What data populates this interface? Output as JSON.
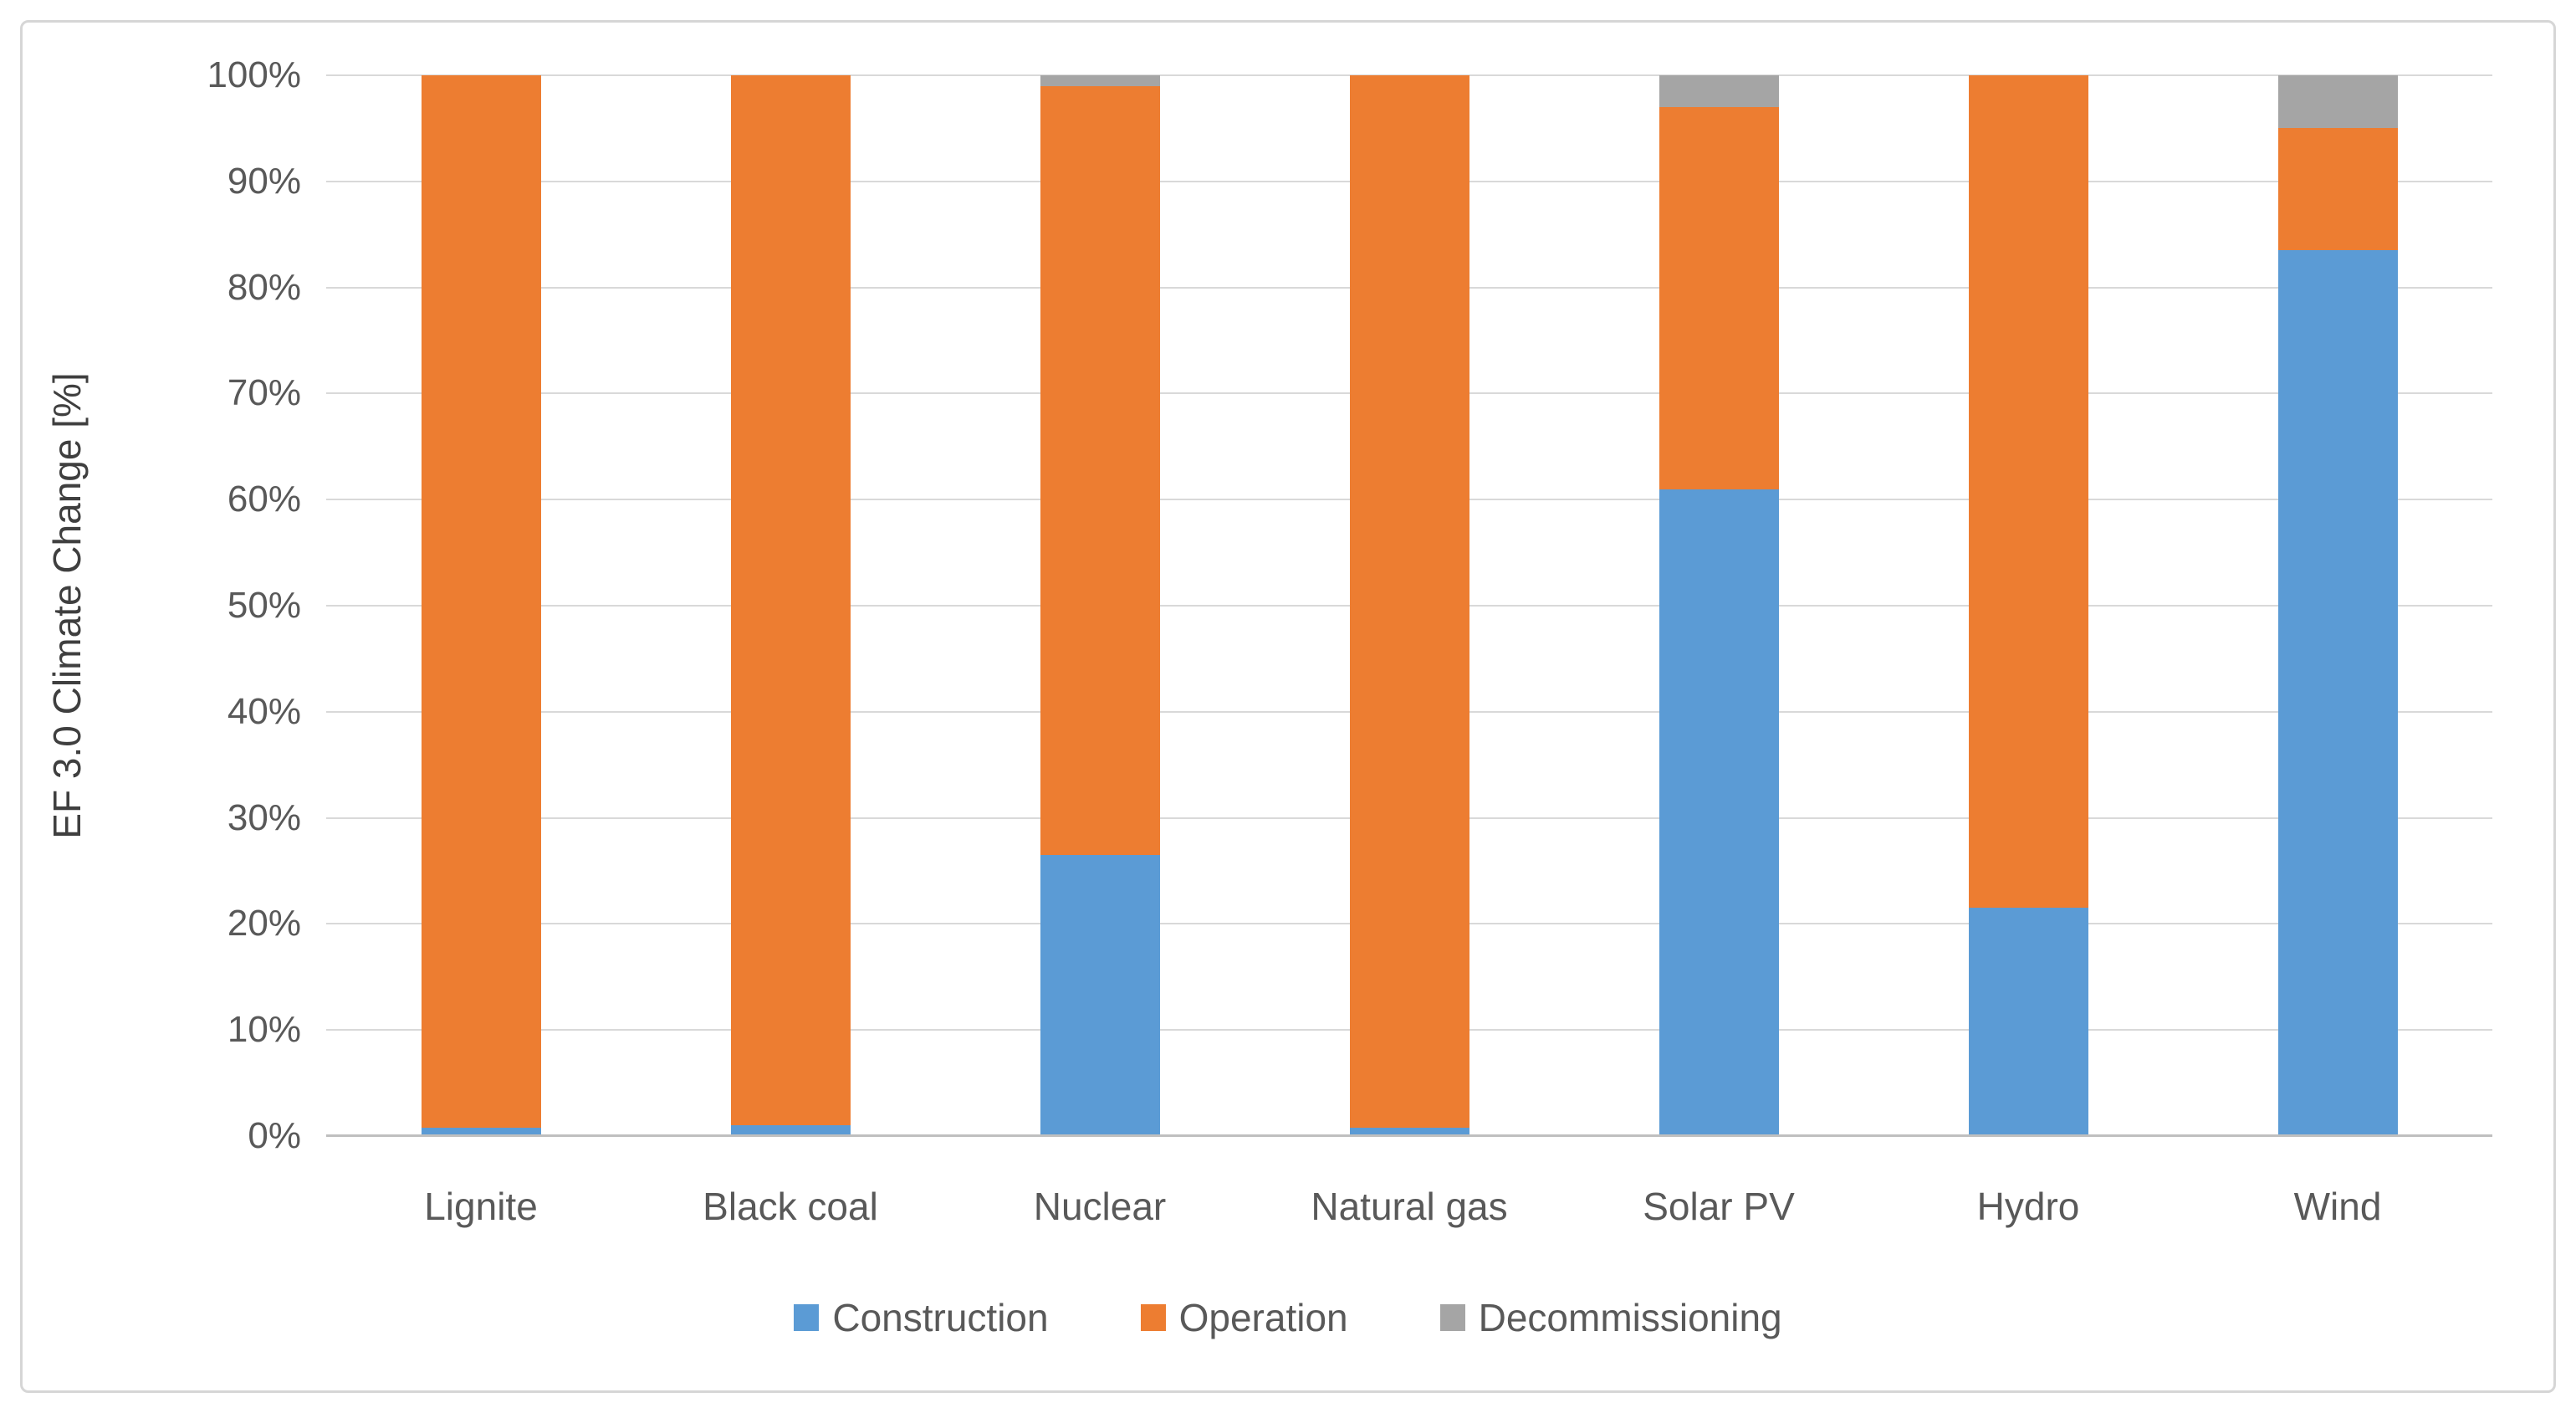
{
  "chart_data": {
    "type": "bar",
    "stacked": true,
    "units": "percent",
    "title": "",
    "xlabel": "",
    "ylabel": "EF 3.0 Climate Change [%]",
    "categories": [
      "Lignite",
      "Black coal",
      "Nuclear",
      "Natural gas",
      "Solar PV",
      "Hydro",
      "Wind"
    ],
    "series": [
      {
        "name": "Construction",
        "color": "#5B9BD5",
        "values": [
          0.8,
          1.0,
          26.5,
          0.8,
          61.0,
          21.5,
          83.5
        ]
      },
      {
        "name": "Operation",
        "color": "#ED7D31",
        "values": [
          99.2,
          99.0,
          72.5,
          99.2,
          36.0,
          78.5,
          11.5
        ]
      },
      {
        "name": "Decommissioning",
        "color": "#A5A5A5",
        "values": [
          0,
          0,
          1.0,
          0,
          3.0,
          0,
          5.0
        ]
      }
    ],
    "ylim": [
      0,
      100
    ],
    "ytick_labels": [
      "0%",
      "10%",
      "20%",
      "30%",
      "40%",
      "50%",
      "60%",
      "70%",
      "80%",
      "90%",
      "100%"
    ],
    "grid": "horizontal",
    "legend_position": "bottom",
    "colors": {
      "gridline": "#D9D9D9",
      "axis_line": "#BFBFBF",
      "tick_text": "#595959",
      "background": "#FFFFFF",
      "figure_border": "#D6D6D6"
    }
  }
}
